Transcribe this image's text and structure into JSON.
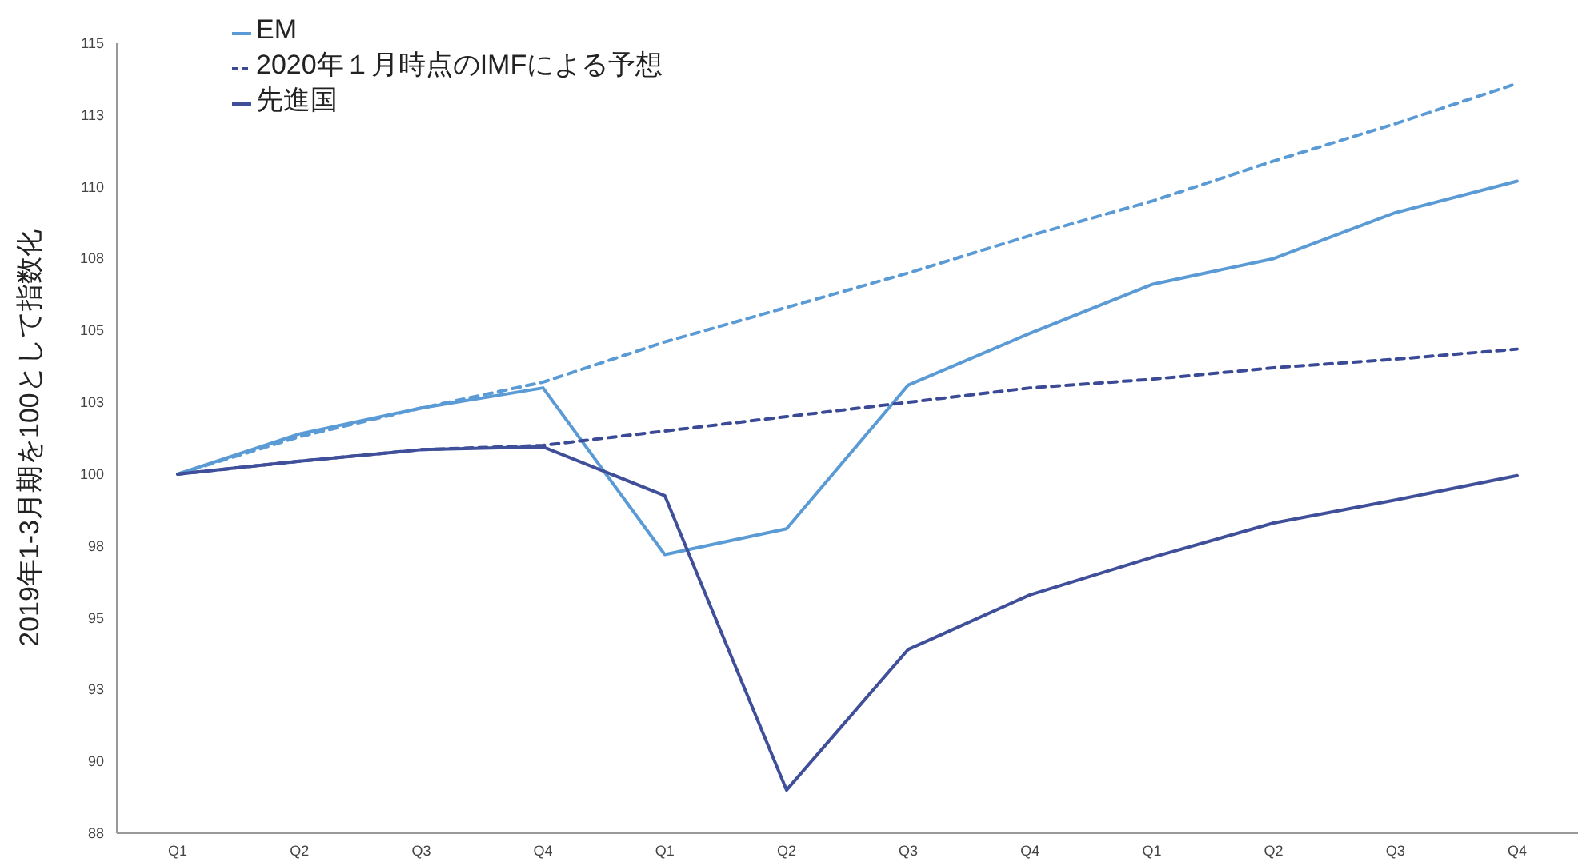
{
  "chart_data": {
    "type": "line",
    "ylabel": "2019年1-3月期を100として指数化",
    "categories": [
      "Q1",
      "Q2",
      "Q3",
      "Q4",
      "Q1",
      "Q2",
      "Q3",
      "Q4",
      "Q1",
      "Q2",
      "Q3",
      "Q4"
    ],
    "series": [
      {
        "name": "EM",
        "color": "#5b9bd5",
        "line_style": "solid",
        "values": [
          100,
          101.4,
          102.3,
          103.0,
          97.2,
          98.1,
          103.1,
          104.9,
          106.6,
          107.5,
          109.1,
          110.2
        ]
      },
      {
        "color": "#5b9bd5",
        "line_style": "dashed",
        "values": [
          100,
          101.3,
          102.3,
          103.2,
          104.6,
          105.8,
          107.0,
          108.3,
          109.5,
          110.9,
          112.2,
          113.6
        ]
      },
      {
        "name": "2020年１月時点のIMFによる予想",
        "color": "#3b4a96",
        "line_style": "dashed",
        "values": [
          100,
          100.45,
          100.85,
          101.0,
          101.5,
          102.0,
          102.5,
          103.0,
          103.3,
          103.7,
          104.0,
          104.35
        ]
      },
      {
        "name": "先進国",
        "color": "#3f4f9a",
        "line_style": "solid",
        "values": [
          100,
          100.45,
          100.85,
          100.95,
          99.25,
          89.0,
          93.9,
          95.8,
          97.1,
          98.3,
          99.1,
          99.95
        ]
      }
    ],
    "ylim": [
      87.5,
      115
    ],
    "yticks": [
      {
        "value": 115,
        "label": "115"
      },
      {
        "value": 112.5,
        "label": "113"
      },
      {
        "value": 110,
        "label": "110"
      },
      {
        "value": 107.5,
        "label": "108"
      },
      {
        "value": 105,
        "label": "105"
      },
      {
        "value": 102.5,
        "label": "103"
      },
      {
        "value": 100,
        "label": "100"
      },
      {
        "value": 97.5,
        "label": "98"
      },
      {
        "value": 95,
        "label": "95"
      },
      {
        "value": 92.5,
        "label": "93"
      },
      {
        "value": 90,
        "label": "90"
      },
      {
        "value": 87.5,
        "label": "88"
      }
    ],
    "grid": false,
    "legend": "top left",
    "marker": "none"
  }
}
